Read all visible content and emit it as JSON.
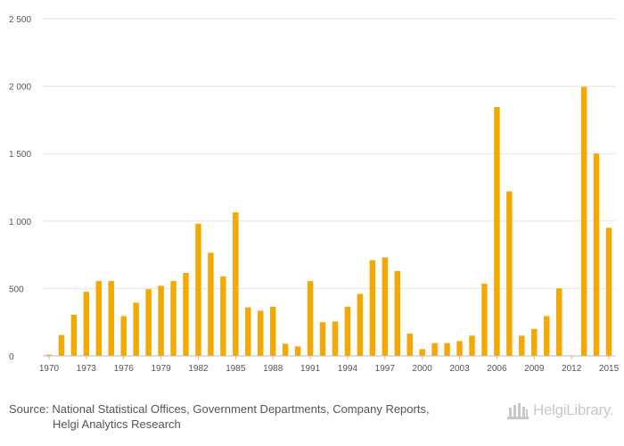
{
  "chart_data": {
    "type": "bar",
    "title": "",
    "xlabel": "",
    "ylabel": "",
    "categories": [
      1970,
      1971,
      1972,
      1973,
      1974,
      1975,
      1976,
      1977,
      1978,
      1979,
      1980,
      1981,
      1982,
      1983,
      1984,
      1985,
      1986,
      1987,
      1988,
      1989,
      1990,
      1991,
      1992,
      1993,
      1994,
      1995,
      1996,
      1997,
      1998,
      1999,
      2000,
      2001,
      2002,
      2003,
      2004,
      2005,
      2006,
      2007,
      2008,
      2009,
      2010,
      2011,
      2012,
      2013,
      2014,
      2015
    ],
    "values": [
      10,
      155,
      305,
      475,
      555,
      555,
      295,
      395,
      495,
      520,
      555,
      615,
      980,
      765,
      590,
      1065,
      360,
      335,
      365,
      90,
      70,
      555,
      250,
      255,
      365,
      460,
      710,
      730,
      630,
      165,
      50,
      95,
      95,
      110,
      150,
      535,
      1845,
      1220,
      150,
      200,
      295,
      500,
      0,
      1995,
      1500,
      950
    ],
    "x_tick_labels": [
      "1970",
      "1973",
      "1976",
      "1979",
      "1982",
      "1985",
      "1988",
      "1991",
      "1994",
      "1997",
      "2000",
      "2003",
      "2006",
      "2009",
      "2012",
      "2015"
    ],
    "y_tick_labels": [
      "0",
      "500",
      "1 000",
      "1 500",
      "2 000",
      "2 500"
    ],
    "y_ticks": [
      0,
      500,
      1000,
      1500,
      2000,
      2500
    ],
    "ylim": [
      0,
      2500
    ],
    "grid": true,
    "bar_color": "#f5a800"
  },
  "footer": {
    "source_line1": "Source: National Statistical Offices, Government Departments, Company Reports,",
    "source_line2": "Helgi Analytics Research"
  },
  "brand": {
    "name": "HelgiLibrary.",
    "icon": "library-building-icon",
    "color": "#c8c8c8"
  }
}
